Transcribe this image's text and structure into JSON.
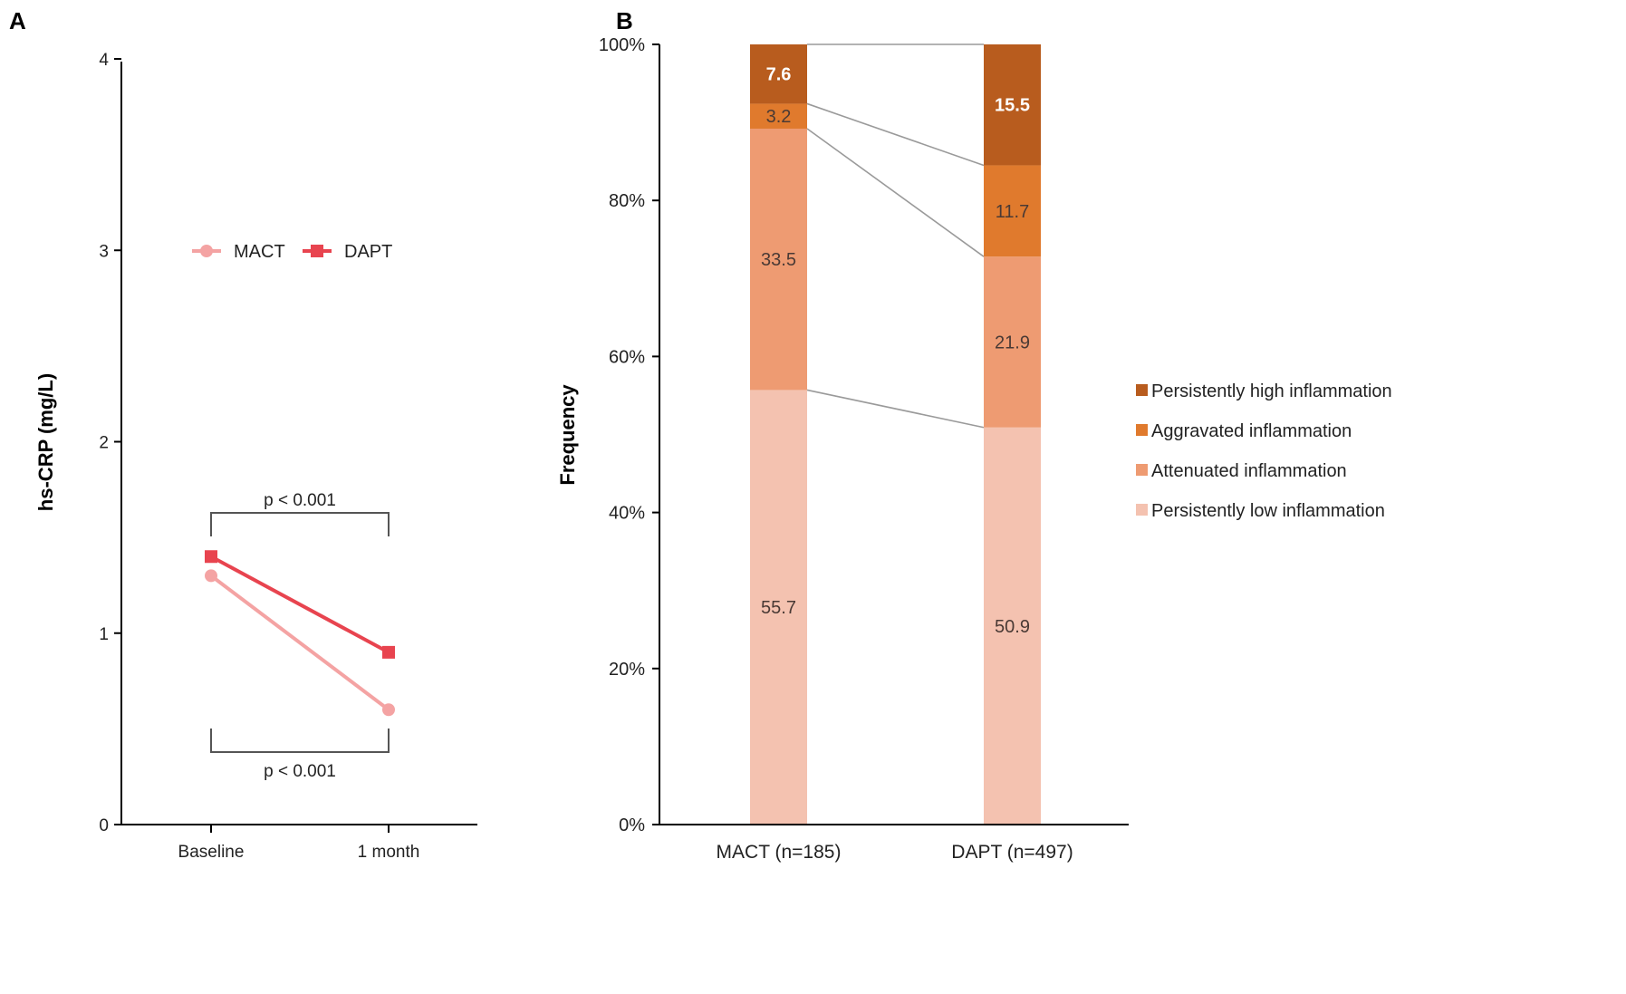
{
  "panels": {
    "a_label": "A",
    "b_label": "B"
  },
  "colors": {
    "mact": "#f4a3a3",
    "dapt": "#e8444f",
    "persistently_high": "#b85c1e",
    "aggravated": "#e07a2d",
    "attenuated": "#ee9b72",
    "persistently_low": "#f4c2b0",
    "connector": "#9a9a9a"
  },
  "chart_data": [
    {
      "type": "line",
      "title": "",
      "xlabel": "",
      "ylabel": "hs-CRP (mg/L)",
      "ylim": [
        0,
        4
      ],
      "yticks": [
        "0",
        "1",
        "2",
        "3",
        "4"
      ],
      "categories": [
        "Baseline",
        "1 month"
      ],
      "series": [
        {
          "name": "MACT",
          "marker": "circle",
          "values": [
            1.3,
            0.6
          ]
        },
        {
          "name": "DAPT",
          "marker": "square",
          "values": [
            1.4,
            0.9
          ]
        }
      ],
      "legend_position": "top-center",
      "annotations": [
        {
          "text": "p < 0.001",
          "group": "DAPT",
          "position": "above"
        },
        {
          "text": "p < 0.001",
          "group": "MACT",
          "position": "below"
        }
      ]
    },
    {
      "type": "stacked-bar",
      "title": "",
      "xlabel": "",
      "ylabel": "Frequency",
      "ylim": [
        0,
        100
      ],
      "yticks": [
        "0%",
        "20%",
        "40%",
        "60%",
        "80%",
        "100%"
      ],
      "categories": [
        "MACT (n=185)",
        "DAPT (n=497)"
      ],
      "series": [
        {
          "name": "Persistently low inflammation",
          "key": "persistently_low",
          "values": [
            55.7,
            50.9
          ],
          "labels": [
            "55.7",
            "50.9"
          ]
        },
        {
          "name": "Attenuated inflammation",
          "key": "attenuated",
          "values": [
            33.5,
            21.9
          ],
          "labels": [
            "33.5",
            "21.9"
          ]
        },
        {
          "name": "Aggravated inflammation",
          "key": "aggravated",
          "values": [
            3.2,
            11.7
          ],
          "labels": [
            "3.2",
            "11.7"
          ]
        },
        {
          "name": "Persistently high inflammation",
          "key": "persistently_high",
          "values": [
            7.6,
            15.5
          ],
          "labels": [
            "7.6",
            "15.5"
          ]
        }
      ],
      "legend_position": "right",
      "legend_order": [
        "Persistently high inflammation",
        "Aggravated inflammation",
        "Attenuated inflammation",
        "Persistently low inflammation"
      ]
    }
  ]
}
